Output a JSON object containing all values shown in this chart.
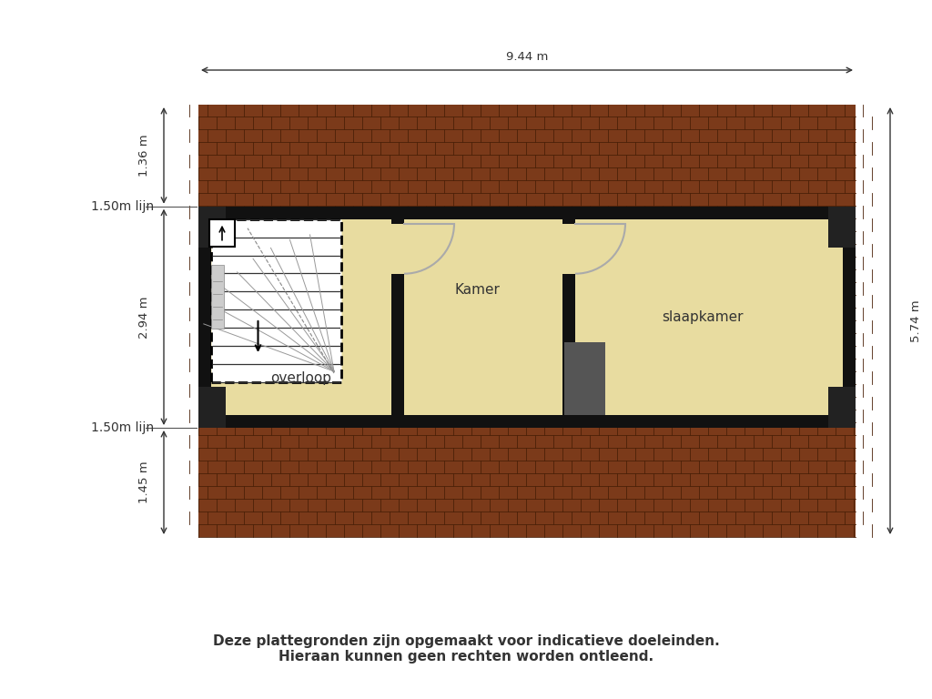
{
  "bg_color": "#ffffff",
  "roof_base_color": "#7B3A1A",
  "roof_line_color": "#4A2008",
  "floor_color": "#E8DCA0",
  "wall_color": "#111111",
  "title_text": "Deze plattegronden zijn opgemaakt voor indicatieve doeleinden.\nHieraan kunnen geen rechten worden ontleend.",
  "dim_top": "9.44 m",
  "dim_right": "5.74 m",
  "dim_left_top": "1.36 m",
  "dim_left_mid": "2.94 m",
  "dim_left_bot": "1.45 m",
  "label_overloop": "overloop",
  "label_kamer": "Kamer",
  "label_slaapkamer": "slaapkamer",
  "lijn_top": "1.50m lijn",
  "lijn_bot": "1.50m lijn",
  "dark_block_color": "#222222",
  "closet_color": "#555555",
  "stair_bg": "#ffffff",
  "door_color": "#aaaaaa"
}
